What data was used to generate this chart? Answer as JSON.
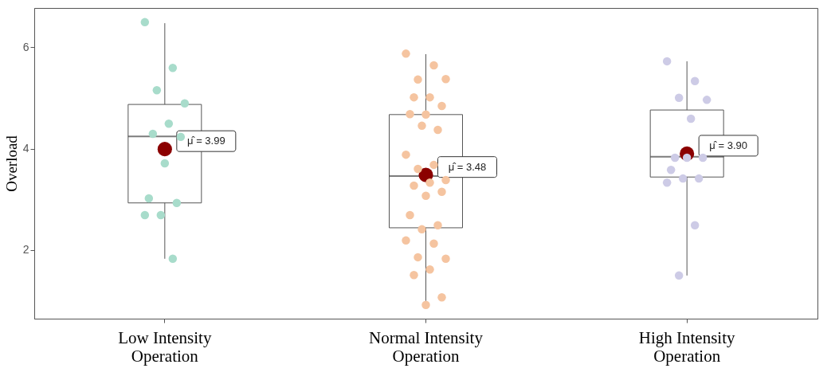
{
  "chart_data": {
    "type": "box",
    "ylabel": "Overload",
    "categories": [
      "Low Intensity Operation",
      "Normal Intensity Operation",
      "High Intensity Operation"
    ],
    "ylim": [
      0.65,
      6.77
    ],
    "yticks": [
      2,
      4,
      6
    ],
    "grid": false,
    "legend": false,
    "boxes": [
      {
        "low": 1.83,
        "q1": 2.93,
        "median": 4.24,
        "q3": 4.87,
        "high": 6.47,
        "mean": 3.99
      },
      {
        "low": 0.9,
        "q1": 2.44,
        "median": 3.46,
        "q3": 4.67,
        "high": 5.86,
        "mean": 3.48
      },
      {
        "low": 1.5,
        "q1": 3.44,
        "median": 3.84,
        "q3": 4.76,
        "high": 5.72,
        "mean": 3.9
      }
    ],
    "series": [
      {
        "type": "scatter",
        "color": "#a8dccb",
        "x": [
          "Low Intensity Operation",
          "Low Intensity Operation",
          "Low Intensity Operation",
          "Low Intensity Operation",
          "Low Intensity Operation",
          "Low Intensity Operation",
          "Low Intensity Operation",
          "Low Intensity Operation",
          "Low Intensity Operation",
          "Low Intensity Operation",
          "Low Intensity Operation",
          "Low Intensity Operation",
          "Low Intensity Operation"
        ],
        "values": [
          6.49,
          5.59,
          5.15,
          4.89,
          4.49,
          4.29,
          4.23,
          3.71,
          3.02,
          2.93,
          2.69,
          2.69,
          1.83
        ]
      },
      {
        "type": "scatter",
        "color": "#f5c4a0",
        "x": [
          "Normal Intensity Operation",
          "Normal Intensity Operation",
          "Normal Intensity Operation",
          "Normal Intensity Operation",
          "Normal Intensity Operation",
          "Normal Intensity Operation",
          "Normal Intensity Operation",
          "Normal Intensity Operation",
          "Normal Intensity Operation",
          "Normal Intensity Operation",
          "Normal Intensity Operation",
          "Normal Intensity Operation",
          "Normal Intensity Operation",
          "Normal Intensity Operation",
          "Normal Intensity Operation",
          "Normal Intensity Operation",
          "Normal Intensity Operation",
          "Normal Intensity Operation",
          "Normal Intensity Operation",
          "Normal Intensity Operation",
          "Normal Intensity Operation",
          "Normal Intensity Operation",
          "Normal Intensity Operation",
          "Normal Intensity Operation",
          "Normal Intensity Operation",
          "Normal Intensity Operation",
          "Normal Intensity Operation",
          "Normal Intensity Operation",
          "Normal Intensity Operation",
          "Normal Intensity Operation"
        ],
        "values": [
          5.87,
          5.64,
          5.36,
          5.37,
          5.01,
          5.01,
          4.84,
          4.67,
          4.68,
          4.37,
          4.45,
          3.88,
          3.68,
          3.6,
          3.38,
          3.33,
          3.27,
          3.15,
          3.07,
          2.69,
          2.49,
          2.41,
          2.19,
          2.13,
          1.86,
          1.83,
          1.62,
          1.51,
          1.07,
          0.92
        ]
      },
      {
        "type": "scatter",
        "color": "#cdcbe6",
        "x": [
          "High Intensity Operation",
          "High Intensity Operation",
          "High Intensity Operation",
          "High Intensity Operation",
          "High Intensity Operation",
          "High Intensity Operation",
          "High Intensity Operation",
          "High Intensity Operation",
          "High Intensity Operation",
          "High Intensity Operation",
          "High Intensity Operation",
          "High Intensity Operation",
          "High Intensity Operation",
          "High Intensity Operation"
        ],
        "values": [
          5.72,
          5.33,
          5.0,
          4.96,
          4.59,
          3.82,
          3.82,
          3.82,
          3.58,
          3.41,
          3.41,
          3.33,
          2.49,
          1.5
        ]
      }
    ],
    "annotations": [
      "μ̂ = 3.99",
      "μ̂ = 3.48",
      "μ̂ = 3.90"
    ]
  }
}
